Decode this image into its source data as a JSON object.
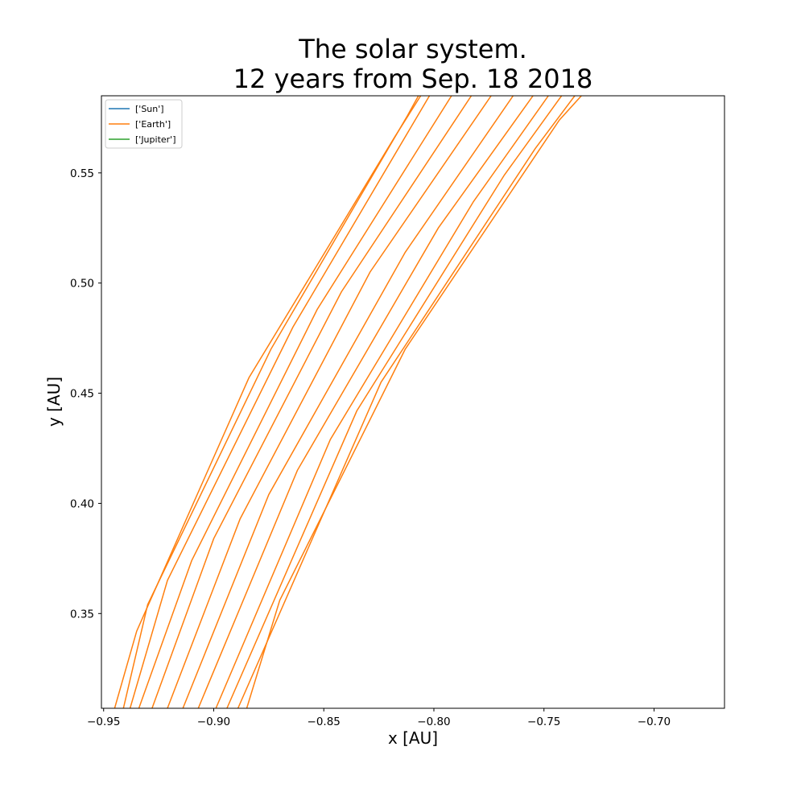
{
  "chart_data": {
    "type": "line",
    "title": "The solar system.",
    "subtitle": "12 years from Sep. 18 2018",
    "xlabel": "x [AU]",
    "ylabel": "y [AU]",
    "xlim": [
      -0.951,
      -0.668
    ],
    "ylim": [
      0.307,
      0.585
    ],
    "xticks": [
      -0.95,
      -0.9,
      -0.85,
      -0.8,
      -0.75,
      -0.7
    ],
    "xtick_labels": [
      "−0.95",
      "−0.90",
      "−0.85",
      "−0.80",
      "−0.75",
      "−0.70"
    ],
    "yticks": [
      0.35,
      0.4,
      0.45,
      0.5,
      0.55
    ],
    "ytick_labels": [
      "0.35",
      "0.40",
      "0.45",
      "0.50",
      "0.55"
    ],
    "grid": false,
    "legend_position": "top-left",
    "legend": [
      {
        "label": "['Sun']",
        "color": "#1f77b4"
      },
      {
        "label": "['Earth']",
        "color": "#ff7f0e"
      },
      {
        "label": "['Jupiter']",
        "color": "#2ca02c"
      }
    ],
    "series": [
      {
        "name": "['Earth']",
        "color": "#ff7f0e",
        "segments": [
          [
            [
              -0.945,
              0.307
            ],
            [
              -0.935,
              0.342
            ],
            [
              -0.884,
              0.457
            ],
            [
              -0.818,
              0.566
            ],
            [
              -0.806,
              0.585
            ]
          ],
          [
            [
              -0.941,
              0.307
            ],
            [
              -0.93,
              0.354
            ],
            [
              -0.874,
              0.47
            ],
            [
              -0.812,
              0.576
            ],
            [
              -0.807,
              0.585
            ]
          ],
          [
            [
              -0.938,
              0.307
            ],
            [
              -0.921,
              0.365
            ],
            [
              -0.864,
              0.48
            ],
            [
              -0.802,
              0.585
            ]
          ],
          [
            [
              -0.934,
              0.307
            ],
            [
              -0.91,
              0.374
            ],
            [
              -0.853,
              0.488
            ],
            [
              -0.792,
              0.585
            ]
          ],
          [
            [
              -0.928,
              0.307
            ],
            [
              -0.9,
              0.384
            ],
            [
              -0.842,
              0.496
            ],
            [
              -0.783,
              0.585
            ]
          ],
          [
            [
              -0.921,
              0.307
            ],
            [
              -0.888,
              0.393
            ],
            [
              -0.829,
              0.505
            ],
            [
              -0.774,
              0.585
            ]
          ],
          [
            [
              -0.914,
              0.307
            ],
            [
              -0.875,
              0.404
            ],
            [
              -0.813,
              0.514
            ],
            [
              -0.764,
              0.585
            ]
          ],
          [
            [
              -0.907,
              0.307
            ],
            [
              -0.862,
              0.415
            ],
            [
              -0.798,
              0.525
            ],
            [
              -0.755,
              0.585
            ]
          ],
          [
            [
              -0.899,
              0.307
            ],
            [
              -0.847,
              0.429
            ],
            [
              -0.782,
              0.537
            ],
            [
              -0.748,
              0.585
            ]
          ],
          [
            [
              -0.894,
              0.307
            ],
            [
              -0.835,
              0.442
            ],
            [
              -0.768,
              0.549
            ],
            [
              -0.742,
              0.585
            ]
          ],
          [
            [
              -0.889,
              0.307
            ],
            [
              -0.824,
              0.455
            ],
            [
              -0.754,
              0.561
            ],
            [
              -0.736,
              0.585
            ]
          ],
          [
            [
              -0.885,
              0.307
            ],
            [
              -0.87,
              0.356
            ],
            [
              -0.813,
              0.47
            ],
            [
              -0.743,
              0.574
            ],
            [
              -0.733,
              0.585
            ]
          ]
        ]
      },
      {
        "name": "['Sun']",
        "color": "#1f77b4",
        "segments": []
      },
      {
        "name": "['Jupiter']",
        "color": "#2ca02c",
        "segments": []
      }
    ]
  }
}
